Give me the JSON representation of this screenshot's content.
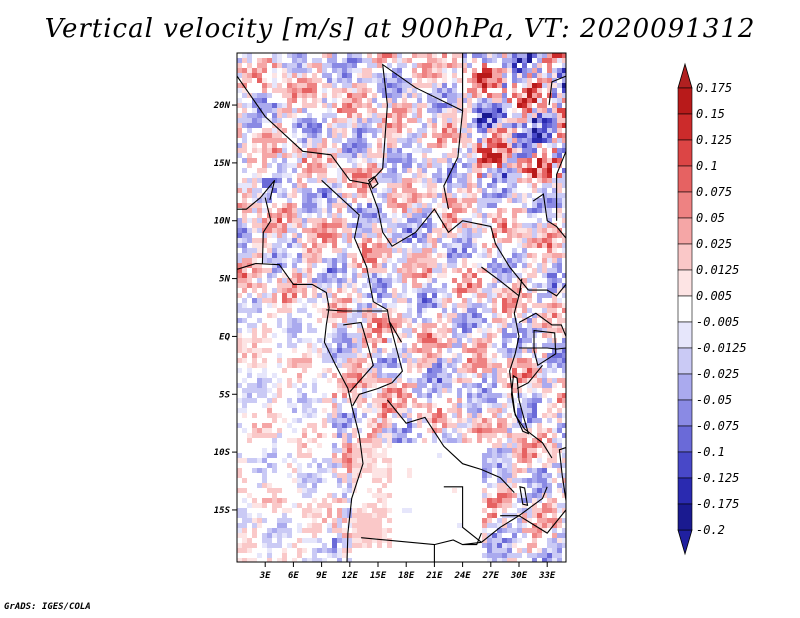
{
  "title": "Vertical velocity [m/s] at 900hPa, VT: 2020091312",
  "footer": "GrADS: IGES/COLA",
  "map": {
    "lat_range": [
      -19.5,
      24.5
    ],
    "lon_range": [
      0,
      35
    ],
    "lat_ticks": [
      {
        "value": 20,
        "label": "20N"
      },
      {
        "value": 15,
        "label": "15N"
      },
      {
        "value": 10,
        "label": "10N"
      },
      {
        "value": 5,
        "label": "5N"
      },
      {
        "value": 0,
        "label": "EQ"
      },
      {
        "value": -5,
        "label": "5S"
      },
      {
        "value": -10,
        "label": "10S"
      },
      {
        "value": -15,
        "label": "15S"
      }
    ],
    "lon_ticks": [
      {
        "value": 3,
        "label": "3E"
      },
      {
        "value": 6,
        "label": "6E"
      },
      {
        "value": 9,
        "label": "9E"
      },
      {
        "value": 12,
        "label": "12E"
      },
      {
        "value": 15,
        "label": "15E"
      },
      {
        "value": 18,
        "label": "18E"
      },
      {
        "value": 21,
        "label": "21E"
      },
      {
        "value": 24,
        "label": "24E"
      },
      {
        "value": 27,
        "label": "27E"
      },
      {
        "value": 30,
        "label": "30E"
      },
      {
        "value": 33,
        "label": "33E"
      }
    ]
  },
  "colorbar": {
    "levels": [
      {
        "label": "0.175",
        "color": "#a01010"
      },
      {
        "label": "0.15",
        "color": "#b81a1a"
      },
      {
        "label": "0.125",
        "color": "#cc2b2b"
      },
      {
        "label": "0.1",
        "color": "#dc4545"
      },
      {
        "label": "0.075",
        "color": "#e66262"
      },
      {
        "label": "0.05",
        "color": "#ee8282"
      },
      {
        "label": "0.025",
        "color": "#f5a6a6"
      },
      {
        "label": "0.0125",
        "color": "#fac8c8"
      },
      {
        "label": "0.005",
        "color": "#fde4e4"
      },
      {
        "label": "-0.005",
        "color": "#ffffff"
      },
      {
        "label": "-0.0125",
        "color": "#e6e6fb"
      },
      {
        "label": "-0.025",
        "color": "#cacaf5"
      },
      {
        "label": "-0.05",
        "color": "#aaaaee"
      },
      {
        "label": "-0.075",
        "color": "#8a8ae4"
      },
      {
        "label": "-0.1",
        "color": "#6a6ad8"
      },
      {
        "label": "-0.125",
        "color": "#4848c8"
      },
      {
        "label": "-0.175",
        "color": "#2a2ab0"
      },
      {
        "label": "-0.2",
        "color": "#1a1a90"
      }
    ],
    "top_arrow_color": "#b02020",
    "bottom_arrow_color": "#2020a0"
  }
}
